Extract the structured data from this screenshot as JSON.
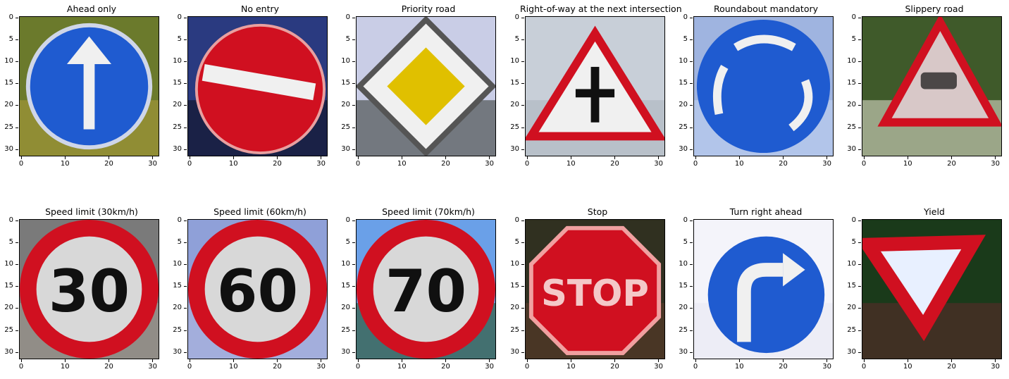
{
  "figure": {
    "panels": [
      {
        "title": "Ahead only",
        "sign": "ahead-only",
        "bg": [
          "#6b7a2c",
          "#a89a3a"
        ]
      },
      {
        "title": "No entry",
        "sign": "no-entry",
        "bg": [
          "#2a3a80",
          "#101020"
        ]
      },
      {
        "title": "Priority road",
        "sign": "priority-road",
        "bg": [
          "#c9cde6",
          "#3a3f3a"
        ]
      },
      {
        "title": "Right-of-way at the next intersection",
        "sign": "right-of-way",
        "bg": [
          "#c8cfd8",
          "#aeb6c0"
        ]
      },
      {
        "title": "Roundabout mandatory",
        "sign": "roundabout",
        "bg": [
          "#9fb4e0",
          "#c0d0f0"
        ]
      },
      {
        "title": "Slippery road",
        "sign": "slippery",
        "bg": [
          "#3f5a2a",
          "#d8d8c8"
        ]
      },
      {
        "title": "Speed limit (30km/h)",
        "sign": "speed",
        "value": "30",
        "bg": [
          "#7a7a7a",
          "#a09a90"
        ]
      },
      {
        "title": "Speed limit (60km/h)",
        "sign": "speed",
        "value": "60",
        "bg": [
          "#8fa0d8",
          "#b0b8e0"
        ]
      },
      {
        "title": "Speed limit (70km/h)",
        "sign": "speed",
        "value": "70",
        "bg": [
          "#6aa0e8",
          "#2a5020"
        ]
      },
      {
        "title": "Stop",
        "sign": "stop",
        "value": "STOP",
        "bg": [
          "#303020",
          "#5a3a2a"
        ]
      },
      {
        "title": "Turn right ahead",
        "sign": "turn-right",
        "bg": [
          "#f4f4fa",
          "#e8e8f4"
        ]
      },
      {
        "title": "Yield",
        "sign": "yield",
        "bg": [
          "#1a3a1a",
          "#5a2a2a"
        ]
      }
    ],
    "y_ticks": [
      "0",
      "5",
      "10",
      "15",
      "20",
      "25",
      "30"
    ],
    "x_ticks": [
      "0",
      "10",
      "20",
      "30"
    ],
    "colors": {
      "red": "#d01020",
      "blue": "#1f5bd0",
      "yellow": "#e0c000",
      "white": "#f0f0f0",
      "black": "#101010"
    }
  }
}
